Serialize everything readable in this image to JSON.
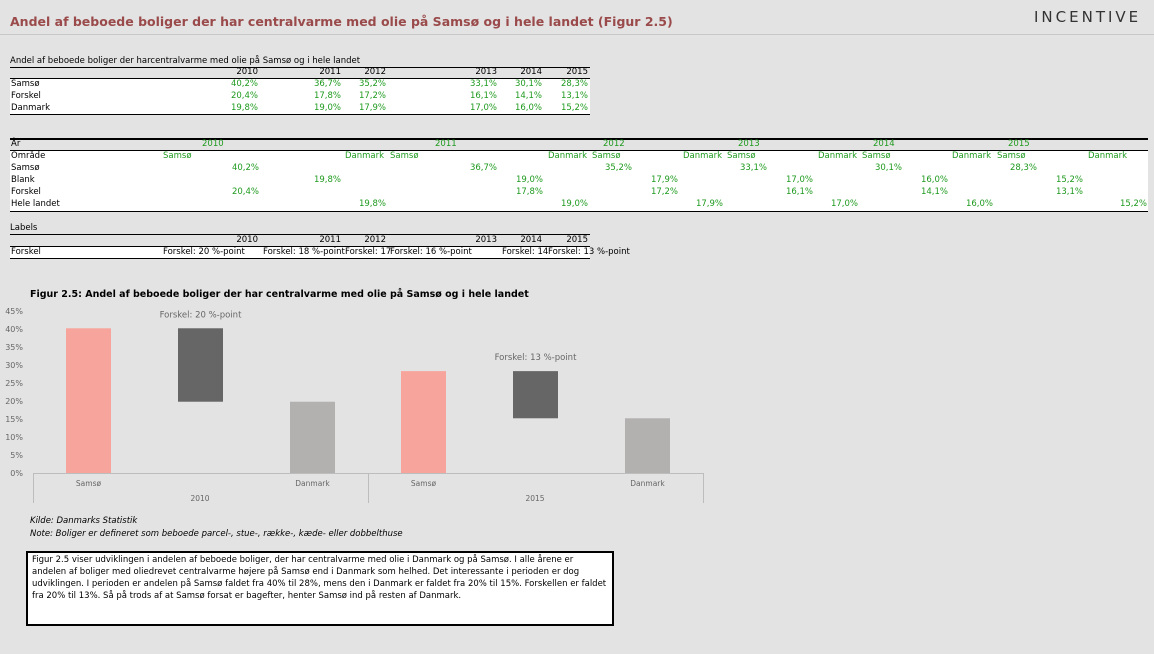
{
  "title": "Andel af beboede boliger der har centralvarme med olie på Samsø og i hele landet (Figur 2.5)",
  "logo": "INCENTIVE",
  "table1": {
    "caption": "Andel af beboede boliger der harcentralvarme med olie på Samsø og i hele landet",
    "years": [
      "2010",
      "2011",
      "2012",
      "2013",
      "2014",
      "2015"
    ],
    "rows": [
      {
        "label": "Samsø",
        "values": [
          "40,2%",
          "36,7%",
          "35,2%",
          "33,1%",
          "30,1%",
          "28,3%"
        ]
      },
      {
        "label": "Forskel",
        "values": [
          "20,4%",
          "17,8%",
          "17,2%",
          "16,1%",
          "14,1%",
          "13,1%"
        ]
      },
      {
        "label": "Danmark",
        "values": [
          "19,8%",
          "19,0%",
          "17,9%",
          "17,0%",
          "16,0%",
          "15,2%"
        ]
      }
    ]
  },
  "table2": {
    "label_year": "År",
    "label_area": "Område",
    "years": [
      "2010",
      "2011",
      "2012",
      "2013",
      "2014",
      "2015"
    ],
    "areas": [
      [
        "Samsø",
        "Danmark"
      ],
      [
        "Samsø",
        "Danmark"
      ],
      [
        "Samsø",
        "Danmark"
      ],
      [
        "Samsø",
        "Danmark"
      ],
      [
        "Samsø",
        "Danmark"
      ],
      [
        "Samsø",
        "Danmark"
      ]
    ],
    "rows": [
      {
        "label": "Samsø",
        "values": [
          "40,2%",
          "36,7%",
          "35,2%",
          "33,1%",
          "30,1%",
          "28,3%"
        ]
      },
      {
        "label": "Blank",
        "values": [
          "19,8%",
          "19,0%",
          "17,9%",
          "17,0%",
          "16,0%",
          "15,2%"
        ]
      },
      {
        "label": "Forskel",
        "values": [
          "20,4%",
          "17,8%",
          "17,2%",
          "16,1%",
          "14,1%",
          "13,1%"
        ]
      },
      {
        "label": "Hele landet",
        "values": [
          "19,8%",
          "19,0%",
          "17,9%",
          "17,0%",
          "16,0%",
          "15,2%"
        ]
      }
    ]
  },
  "table3": {
    "caption": "Labels",
    "years": [
      "2010",
      "2011",
      "2012",
      "2013",
      "2014",
      "2015"
    ],
    "row_label": "Forskel",
    "values": [
      "Forskel: 20 %-point",
      "Forskel: 18 %-point",
      "Forskel: 17",
      "Forskel: 16 %-point",
      "Forskel: 14",
      "Forskel: 13 %-point"
    ]
  },
  "chart_title": "Figur 2.5: Andel af beboede boliger der har centralvarme med olie på Samsø og i hele landet",
  "chart_data": {
    "type": "bar",
    "title": "Figur 2.5: Andel af beboede boliger der har centralvarme med olie på Samsø og i hele landet",
    "ylim": [
      0,
      45
    ],
    "yticks": [
      "0%",
      "5%",
      "10%",
      "15%",
      "20%",
      "25%",
      "30%",
      "35%",
      "40%",
      "45%"
    ],
    "grid": false,
    "groups": [
      {
        "year": "2010",
        "samso": 40.2,
        "diff_from": 19.8,
        "diff_to": 40.2,
        "danmark": 19.8,
        "label": "Forskel: 20 %-point",
        "cat_samso": "Samsø",
        "cat_danmark": "Danmark"
      },
      {
        "year": "2015",
        "samso": 28.3,
        "diff_from": 15.2,
        "diff_to": 28.3,
        "danmark": 15.2,
        "label": "Forskel: 13 %-point",
        "cat_samso": "Samsø",
        "cat_danmark": "Danmark"
      }
    ],
    "colors": {
      "samso": "#f7a49c",
      "diff": "#666666",
      "danmark": "#b3b0b0"
    }
  },
  "source": "Kilde: Danmarks Statistik",
  "note": "Note: Boliger er defineret som beboede parcel-, stue-, række-, kæde- eller dobbelthuse",
  "description": "Figur 2.5 viser udviklingen i andelen af beboede boliger, der har centralvarme med olie i Danmark og på Samsø. I alle årene er andelen af boliger med oliedrevet centralvarme højere på Samsø end i Danmark som helhed. Det interessante i perioden er dog udviklingen. I perioden er andelen på Samsø faldet fra 40% til 28%, mens den i Danmark er faldet fra 20% til 15%. Forskellen er faldet fra 20% til 13%. Så på trods af at Samsø forsat er bagefter, henter Samsø ind på resten af Danmark."
}
